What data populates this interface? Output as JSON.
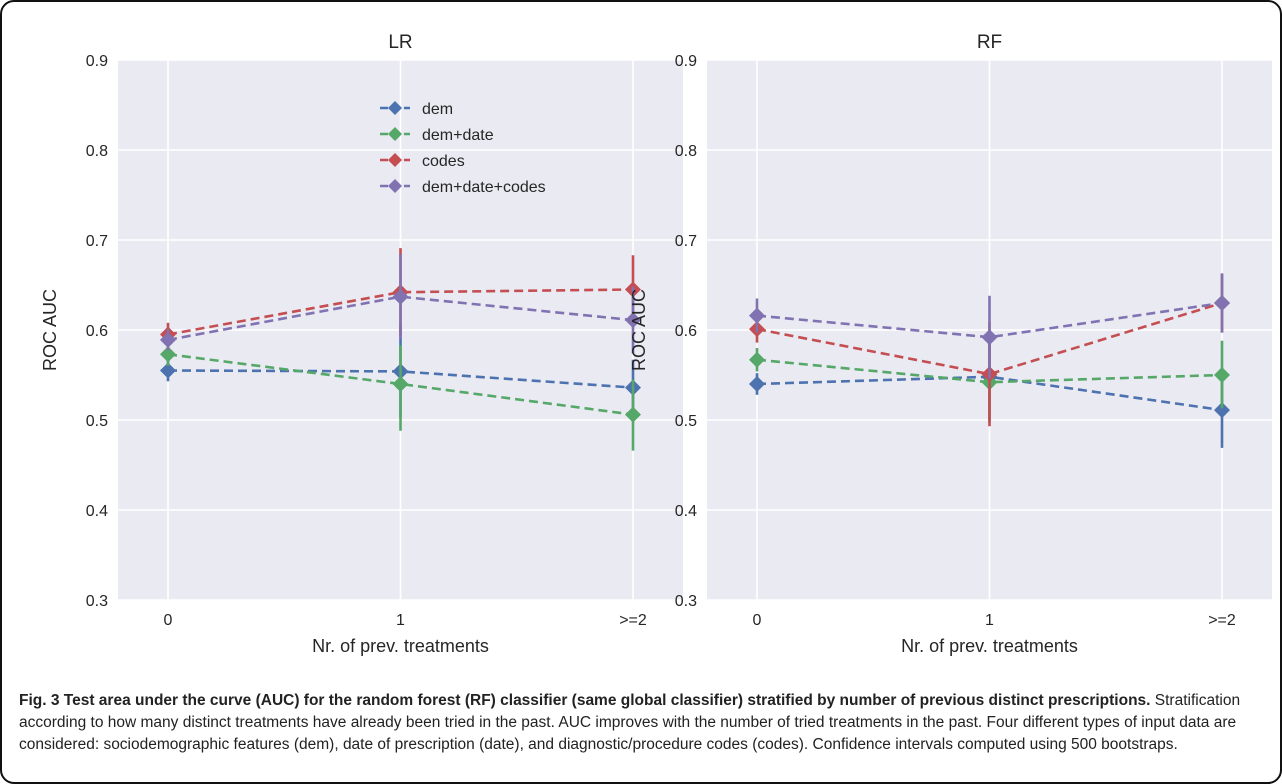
{
  "chart_data": [
    {
      "type": "line",
      "title": "LR",
      "xlabel": "Nr. of prev. treatments",
      "ylabel": "ROC AUC",
      "categories": [
        "0",
        "1",
        ">=2"
      ],
      "ylim": [
        0.3,
        0.9
      ],
      "yticks": [
        "0.3",
        "0.4",
        "0.5",
        "0.6",
        "0.7",
        "0.8",
        "0.9"
      ],
      "grid": true,
      "legend": "top-right",
      "series": [
        {
          "name": "dem",
          "color": "#4c72b0",
          "values": [
            0.555,
            0.554,
            0.536
          ],
          "err_low": [
            0.543,
            0.503,
            0.505
          ],
          "err_high": [
            0.567,
            0.605,
            0.567
          ]
        },
        {
          "name": "dem+date",
          "color": "#55a868",
          "values": [
            0.573,
            0.54,
            0.506
          ],
          "err_low": [
            0.56,
            0.488,
            0.466
          ],
          "err_high": [
            0.586,
            0.583,
            0.545
          ]
        },
        {
          "name": "codes",
          "color": "#c44e52",
          "values": [
            0.595,
            0.642,
            0.645
          ],
          "err_low": [
            0.582,
            0.593,
            0.607
          ],
          "err_high": [
            0.608,
            0.691,
            0.683
          ]
        },
        {
          "name": "dem+date+codes",
          "color": "#8172b2",
          "values": [
            0.589,
            0.637,
            0.611
          ],
          "err_low": [
            0.577,
            0.59,
            0.574
          ],
          "err_high": [
            0.601,
            0.684,
            0.648
          ]
        }
      ]
    },
    {
      "type": "line",
      "title": "RF",
      "xlabel": "Nr. of prev. treatments",
      "ylabel": "ROC AUC",
      "categories": [
        "0",
        "1",
        ">=2"
      ],
      "ylim": [
        0.3,
        0.9
      ],
      "yticks": [
        "0.3",
        "0.4",
        "0.5",
        "0.6",
        "0.7",
        "0.8",
        "0.9"
      ],
      "grid": true,
      "series": [
        {
          "name": "dem",
          "color": "#4c72b0",
          "values": [
            0.54,
            0.548,
            0.511
          ],
          "err_low": [
            0.528,
            0.5,
            0.469
          ],
          "err_high": [
            0.552,
            0.596,
            0.553
          ]
        },
        {
          "name": "dem+date",
          "color": "#55a868",
          "values": [
            0.567,
            0.542,
            0.55
          ],
          "err_low": [
            0.554,
            0.497,
            0.513
          ],
          "err_high": [
            0.58,
            0.587,
            0.588
          ]
        },
        {
          "name": "codes",
          "color": "#c44e52",
          "values": [
            0.601,
            0.551,
            0.63
          ],
          "err_low": [
            0.586,
            0.493,
            0.598
          ],
          "err_high": [
            0.616,
            0.609,
            0.662
          ]
        },
        {
          "name": "dem+date+codes",
          "color": "#8172b2",
          "values": [
            0.616,
            0.592,
            0.63
          ],
          "err_low": [
            0.597,
            0.546,
            0.597
          ],
          "err_high": [
            0.635,
            0.638,
            0.663
          ]
        }
      ]
    }
  ],
  "caption": {
    "bold": "Fig. 3 Test area under the curve (AUC) for the random forest (RF) classifier (same global classifier) stratified by number of previous distinct prescriptions.",
    "text": " Stratification according to how many distinct treatments have already been tried in the past. AUC improves with the number of tried treatments in the past. Four different types of input data are considered: sociodemographic features (dem), date of prescription (date), and diagnostic/procedure codes (codes). Confidence intervals computed using 500 bootstraps."
  }
}
